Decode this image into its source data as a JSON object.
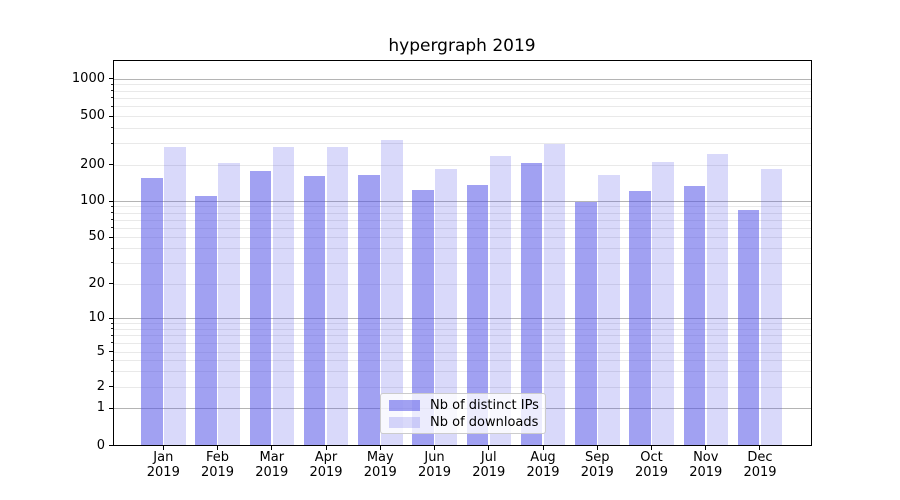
{
  "title": "hypergraph 2019",
  "chart_data": {
    "type": "bar",
    "title": "hypergraph 2019",
    "x_categories": [
      "Jan 2019",
      "Feb 2019",
      "Mar 2019",
      "Apr 2019",
      "May 2019",
      "Jun 2019",
      "Jul 2019",
      "Aug 2019",
      "Sep 2019",
      "Oct 2019",
      "Nov 2019",
      "Dec 2019"
    ],
    "x_tick_months": [
      "Jan",
      "Feb",
      "Mar",
      "Apr",
      "May",
      "Jun",
      "Jul",
      "Aug",
      "Sep",
      "Oct",
      "Nov",
      "Dec"
    ],
    "x_tick_year": "2019",
    "series": [
      {
        "name": "Nb of distinct IPs",
        "values": [
          155,
          111,
          176,
          161,
          165,
          124,
          136,
          206,
          98,
          122,
          134,
          84
        ],
        "color": "rgba(77,77,230,0.53)",
        "color_hex_on_white": "#a0a0f2"
      },
      {
        "name": "Nb of downloads",
        "values": [
          278,
          204,
          277,
          276,
          316,
          185,
          237,
          292,
          165,
          210,
          243,
          183
        ],
        "color": "rgba(77,77,230,0.21)",
        "color_hex_on_white": "#dadafa"
      }
    ],
    "y_ticks": [
      0,
      1,
      2,
      5,
      10,
      20,
      50,
      100,
      200,
      500,
      1000
    ],
    "y_scale": "symlog-like",
    "ylim": [
      0,
      1400
    ],
    "y_gridlines_major": [
      1,
      10,
      100,
      1000
    ],
    "y_gridlines_minor": [
      2,
      3,
      4,
      5,
      6,
      7,
      8,
      9,
      20,
      30,
      40,
      50,
      60,
      70,
      80,
      90,
      200,
      300,
      400,
      500,
      600,
      700,
      800,
      900
    ],
    "grid": "both",
    "legend_position": "lower center",
    "colors": {
      "grid_major": "#b4b4b4",
      "grid_minor": "#e9e9e9",
      "spine": "#000000",
      "legend_border": "#cccccc",
      "legend_bg": "rgba(255,255,255,0.8)",
      "text": "#000000"
    }
  }
}
